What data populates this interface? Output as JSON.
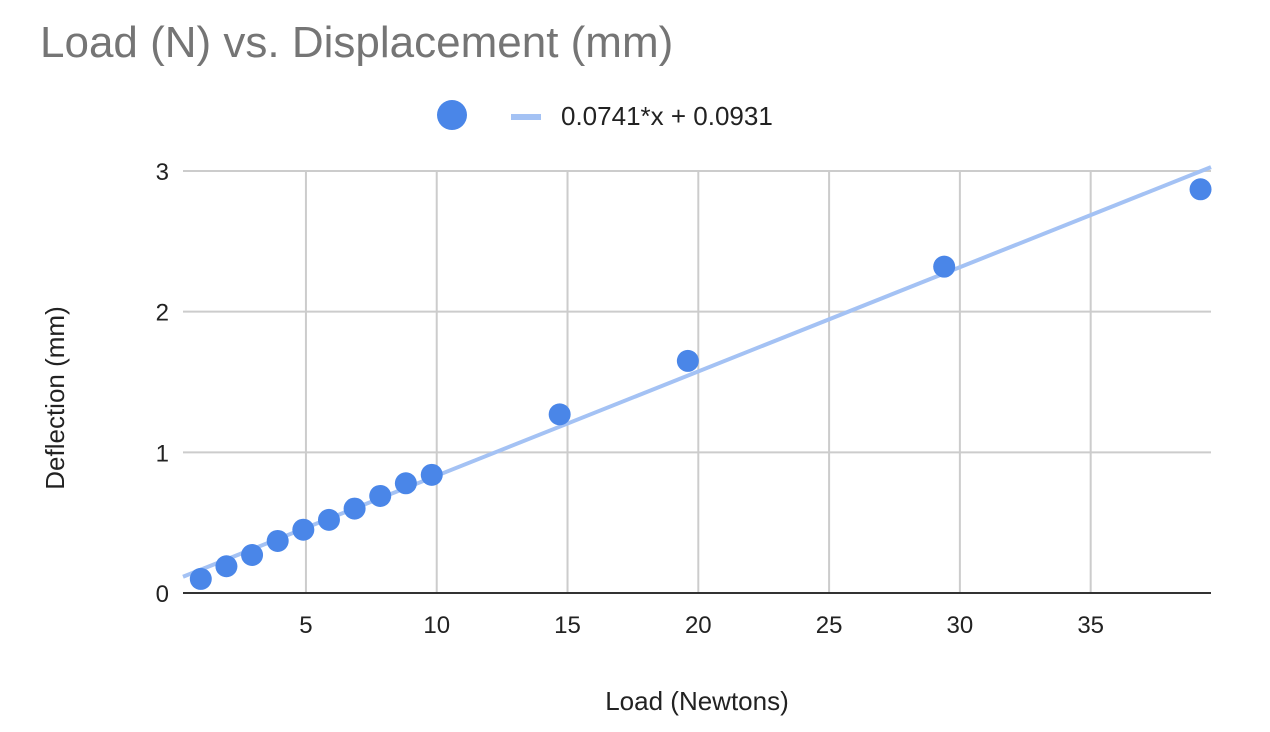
{
  "chart_data": {
    "type": "scatter",
    "title": "Load (N) vs. Displacement (mm)",
    "xlabel": "Load (Newtons)",
    "ylabel": "Deflection (mm)",
    "xlim": [
      0.3,
      39.6
    ],
    "ylim": [
      0,
      3
    ],
    "xticks": [
      5,
      10,
      15,
      20,
      25,
      30,
      35
    ],
    "yticks": [
      0,
      1,
      2,
      3
    ],
    "grid": true,
    "legend_position": "top-center",
    "series": [
      {
        "color": "#4a86e8",
        "points": [
          [
            0.98,
            0.1
          ],
          [
            1.96,
            0.19
          ],
          [
            2.94,
            0.27
          ],
          [
            3.92,
            0.37
          ],
          [
            4.9,
            0.45
          ],
          [
            5.88,
            0.52
          ],
          [
            6.86,
            0.6
          ],
          [
            7.84,
            0.69
          ],
          [
            8.82,
            0.78
          ],
          [
            9.81,
            0.84
          ],
          [
            14.7,
            1.27
          ],
          [
            19.6,
            1.65
          ],
          [
            29.4,
            2.32
          ],
          [
            39.2,
            2.87
          ]
        ]
      }
    ],
    "trendline": {
      "name": "0.0741*x + 0.0931",
      "slope": 0.0741,
      "intercept": 0.0931,
      "color": "#a4c2f4"
    }
  }
}
